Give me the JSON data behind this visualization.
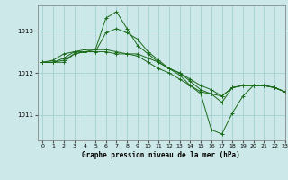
{
  "title": "Graphe pression niveau de la mer (hPa)",
  "bg_color": "#cce8e8",
  "grid_color": "#99cccc",
  "line_color": "#1a6b1a",
  "xlim": [
    -0.5,
    23
  ],
  "ylim": [
    1010.4,
    1013.6
  ],
  "yticks": [
    1011,
    1012,
    1013
  ],
  "xticks": [
    0,
    1,
    2,
    3,
    4,
    5,
    6,
    7,
    8,
    9,
    10,
    11,
    12,
    13,
    14,
    15,
    16,
    17,
    18,
    19,
    20,
    21,
    22,
    23
  ],
  "series": [
    [
      1012.25,
      1012.25,
      1012.35,
      1012.5,
      1012.55,
      1012.55,
      1013.3,
      1013.45,
      1013.05,
      1012.65,
      1012.45,
      1012.25,
      1012.1,
      1011.95,
      1011.7,
      1011.5,
      1010.65,
      1010.55,
      1011.05,
      1011.45,
      1011.7,
      1011.7,
      1011.65,
      1011.55
    ],
    [
      1012.25,
      1012.25,
      1012.3,
      1012.45,
      1012.5,
      1012.5,
      1012.5,
      1012.45,
      1012.45,
      1012.45,
      1012.35,
      1012.25,
      1012.1,
      1012.0,
      1011.85,
      1011.7,
      1011.6,
      1011.45,
      1011.65,
      1011.7,
      1011.7,
      1011.7,
      1011.65,
      1011.55
    ],
    [
      1012.25,
      1012.3,
      1012.45,
      1012.5,
      1012.5,
      1012.55,
      1012.55,
      1012.5,
      1012.45,
      1012.4,
      1012.25,
      1012.1,
      1012.0,
      1011.85,
      1011.7,
      1011.55,
      1011.5,
      1011.45,
      1011.65,
      1011.7,
      1011.7,
      1011.7,
      1011.65,
      1011.55
    ],
    [
      1012.25,
      1012.25,
      1012.25,
      1012.45,
      1012.5,
      1012.5,
      1012.95,
      1013.05,
      1012.95,
      1012.8,
      1012.5,
      1012.3,
      1012.1,
      1012.0,
      1011.8,
      1011.6,
      1011.5,
      1011.3,
      1011.65,
      1011.7,
      1011.7,
      1011.7,
      1011.65,
      1011.55
    ]
  ]
}
